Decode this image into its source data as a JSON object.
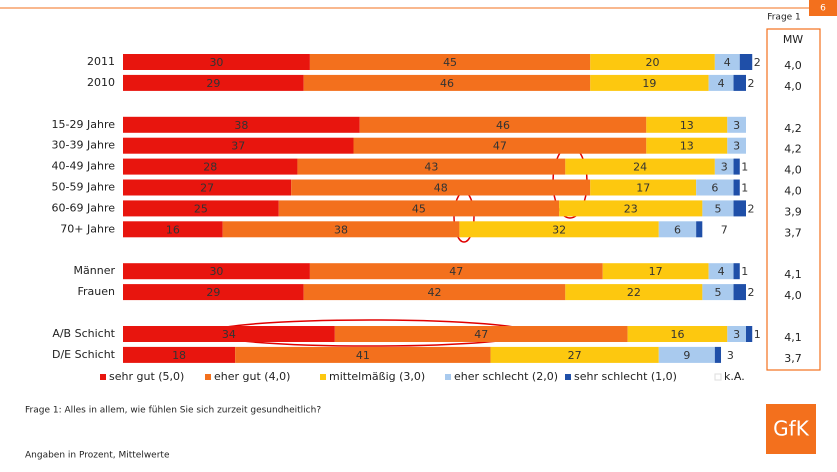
{
  "page_label": "Frage 1",
  "page_number": "6",
  "chart_data": {
    "type": "stacked-barh",
    "categories": [
      "2011",
      "2010",
      "15-29 Jahre",
      "30-39 Jahre",
      "40-49 Jahre",
      "50-59 Jahre",
      "60-69 Jahre",
      "70+ Jahre",
      "Männer",
      "Frauen",
      "A/B Schicht",
      "D/E Schicht"
    ],
    "xlim": [
      0,
      100
    ],
    "series": [
      {
        "name": "sehr gut (5,0)",
        "color": "#e8150e",
        "values": [
          30,
          29,
          38,
          37,
          28,
          27,
          25,
          16,
          30,
          29,
          34,
          18
        ]
      },
      {
        "name": "eher gut (4,0)",
        "color": "#f3701d",
        "values": [
          45,
          46,
          46,
          47,
          43,
          48,
          45,
          38,
          47,
          42,
          47,
          41
        ]
      },
      {
        "name": "mittelmäßig (3,0)",
        "color": "#fdc80f",
        "values": [
          20,
          19,
          13,
          13,
          24,
          17,
          23,
          32,
          17,
          22,
          16,
          27
        ]
      },
      {
        "name": "eher schlecht (2,0)",
        "color": "#a9caee",
        "values": [
          4,
          4,
          3,
          3,
          3,
          6,
          5,
          6,
          4,
          5,
          3,
          9
        ]
      },
      {
        "name": "sehr schlecht (1,0)",
        "color": "#1f4fa8",
        "values": [
          2,
          2,
          null,
          null,
          1,
          1,
          2,
          1,
          1,
          2,
          1,
          1
        ]
      },
      {
        "name": "k.A.",
        "color": "#ffffff",
        "values": [
          null,
          null,
          null,
          null,
          null,
          null,
          null,
          7,
          null,
          null,
          null,
          3
        ]
      }
    ],
    "mean_title": "MW",
    "mean_values": [
      4.0,
      4.0,
      4.2,
      4.2,
      4.0,
      4.0,
      3.9,
      3.7,
      4.1,
      4.0,
      4.1,
      3.7
    ],
    "mean_value_labels": [
      "4,0",
      "4,0",
      "4,2",
      "4,2",
      "4,0",
      "4,0",
      "3,9",
      "3,7",
      "4,1",
      "4,0",
      "4,1",
      "3,7"
    ]
  },
  "question": "Frage 1: Alles in allem, wie fühlen Sie sich zurzeit gesundheitlich?",
  "note": "Angaben in Prozent, Mittelwerte",
  "logo": "GfK"
}
